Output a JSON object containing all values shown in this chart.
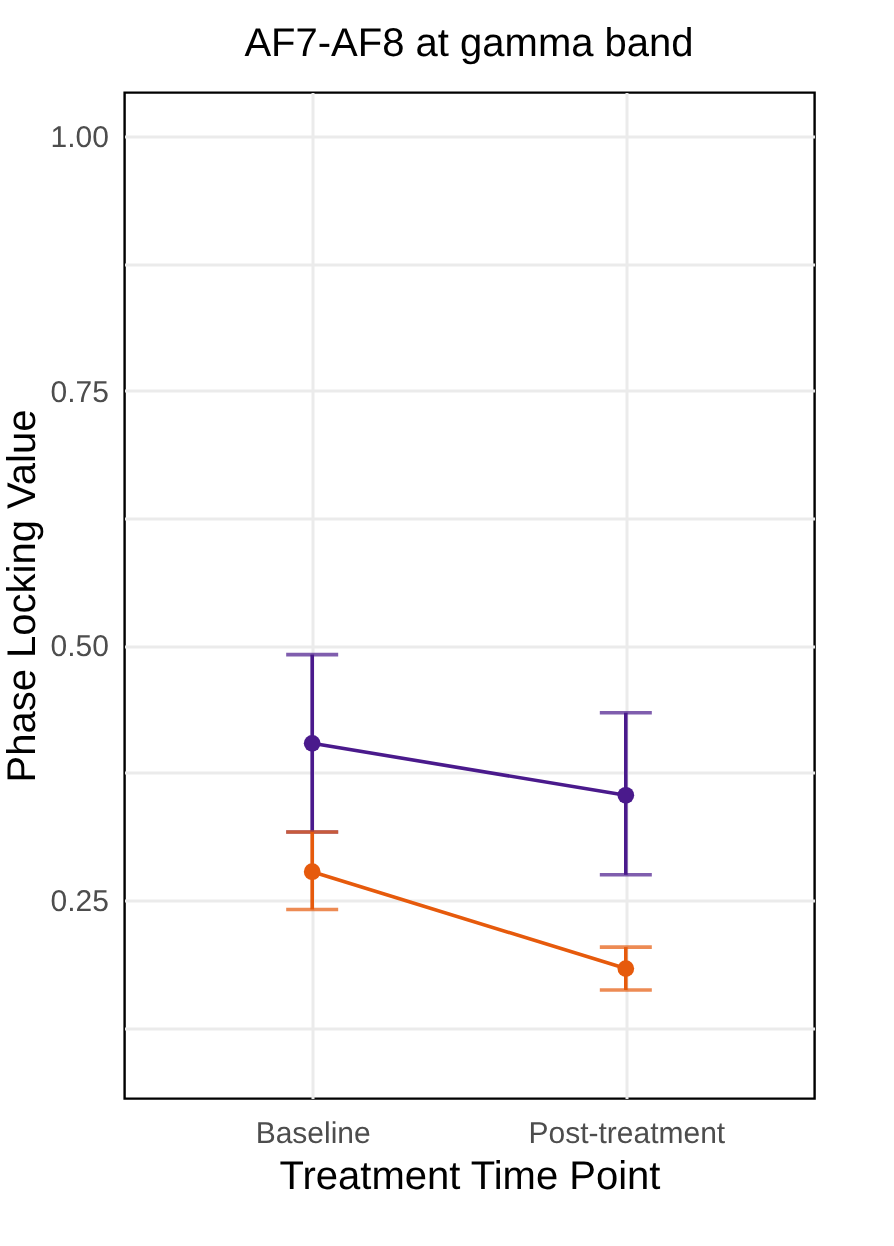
{
  "chart_data": {
    "type": "line",
    "title": "AF7-AF8 at gamma band",
    "xlabel": "Treatment Time Point",
    "ylabel": "Phase Locking Value",
    "categories": [
      "Baseline",
      "Post-treatment"
    ],
    "series": [
      {
        "color": "#4a1a8c",
        "values": [
          0.404,
          0.353
        ],
        "errors": [
          [
            0.317,
            0.491
          ],
          [
            0.275,
            0.434
          ]
        ]
      },
      {
        "color": "#e65a0c",
        "values": [
          0.278,
          0.183
        ],
        "errors": [
          [
            0.241,
            0.317
          ],
          [
            0.162,
            0.204
          ]
        ]
      }
    ],
    "ylim": [
      0.056,
      1.043
    ],
    "yticks": [
      {
        "value": 0.125,
        "label": null
      },
      0.25,
      {
        "value": 0.375,
        "label": null
      },
      {
        "value": 0.5,
        "label": "0.50"
      },
      {
        "value": 0.625,
        "label": null
      },
      0.75,
      {
        "value": 0.875,
        "label": null
      },
      {
        "value": 1.0,
        "label": "1.00"
      }
    ],
    "grid": true,
    "marker": "circle"
  }
}
